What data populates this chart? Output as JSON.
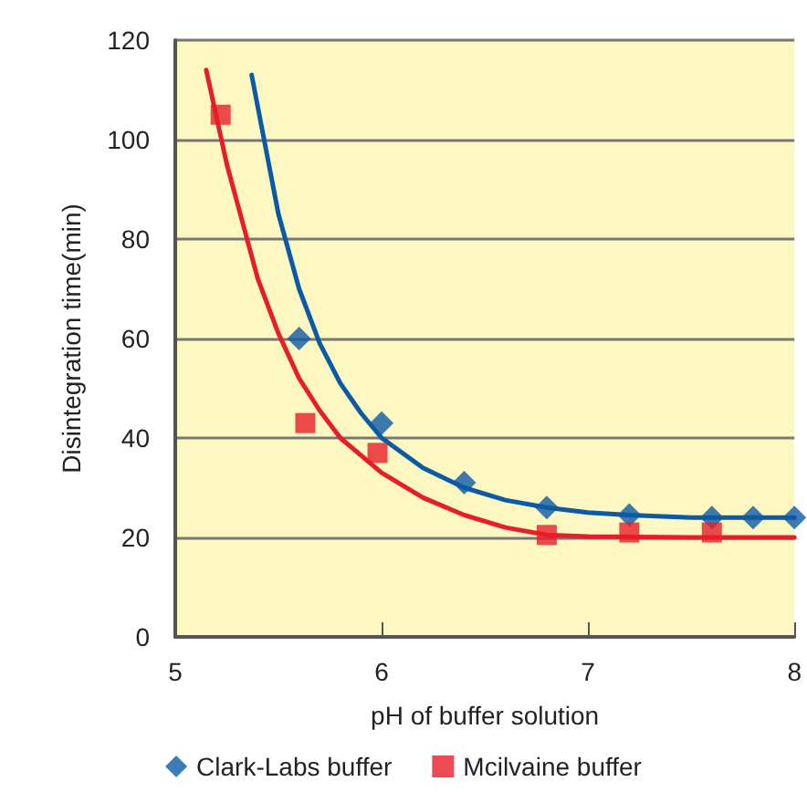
{
  "chart_data": {
    "type": "scatter",
    "xlabel": "pH of buffer solution",
    "ylabel": "Disintegration time(min)",
    "xlim": [
      5,
      8
    ],
    "xticks": [
      5,
      6,
      7,
      8
    ],
    "ylim": [
      0,
      120
    ],
    "yticks": [
      0,
      20,
      40,
      60,
      80,
      100,
      120
    ],
    "grid": "y",
    "legend": "bottom",
    "series": [
      {
        "name": "Clark-Labs buffer",
        "color": "#0b5aa6",
        "marker": "diamond",
        "x": [
          5.6,
          6.0,
          6.4,
          6.8,
          7.2,
          7.6,
          7.8,
          8.0
        ],
        "values": [
          60,
          43,
          31,
          26,
          24.5,
          24,
          24,
          24
        ]
      },
      {
        "name": "Mcilvaine buffer",
        "color": "#e61e2a",
        "marker": "square",
        "x": [
          5.22,
          5.63,
          5.98,
          6.8,
          7.2,
          7.6
        ],
        "values": [
          105,
          43,
          37,
          20.5,
          21,
          21
        ]
      },
      {
        "type": "line",
        "color": "#0b5aa6",
        "marker": "none",
        "x": [
          5.37,
          5.5,
          5.6,
          5.7,
          5.8,
          5.9,
          6.0,
          6.2,
          6.4,
          6.6,
          6.8,
          7.0,
          7.2,
          7.5,
          8.0
        ],
        "values": [
          113,
          85,
          70,
          59,
          51,
          45,
          40,
          34,
          30,
          27.5,
          26,
          25,
          24.5,
          24,
          24
        ]
      },
      {
        "type": "line",
        "color": "#e61e2a",
        "marker": "none",
        "x": [
          5.15,
          5.25,
          5.4,
          5.5,
          5.6,
          5.7,
          5.8,
          6.0,
          6.2,
          6.4,
          6.6,
          6.8,
          7.0,
          7.5,
          8.0
        ],
        "values": [
          114,
          95,
          72,
          61,
          52,
          45.5,
          40,
          33,
          28,
          24.5,
          22,
          20.5,
          20.2,
          20,
          20
        ]
      }
    ]
  }
}
